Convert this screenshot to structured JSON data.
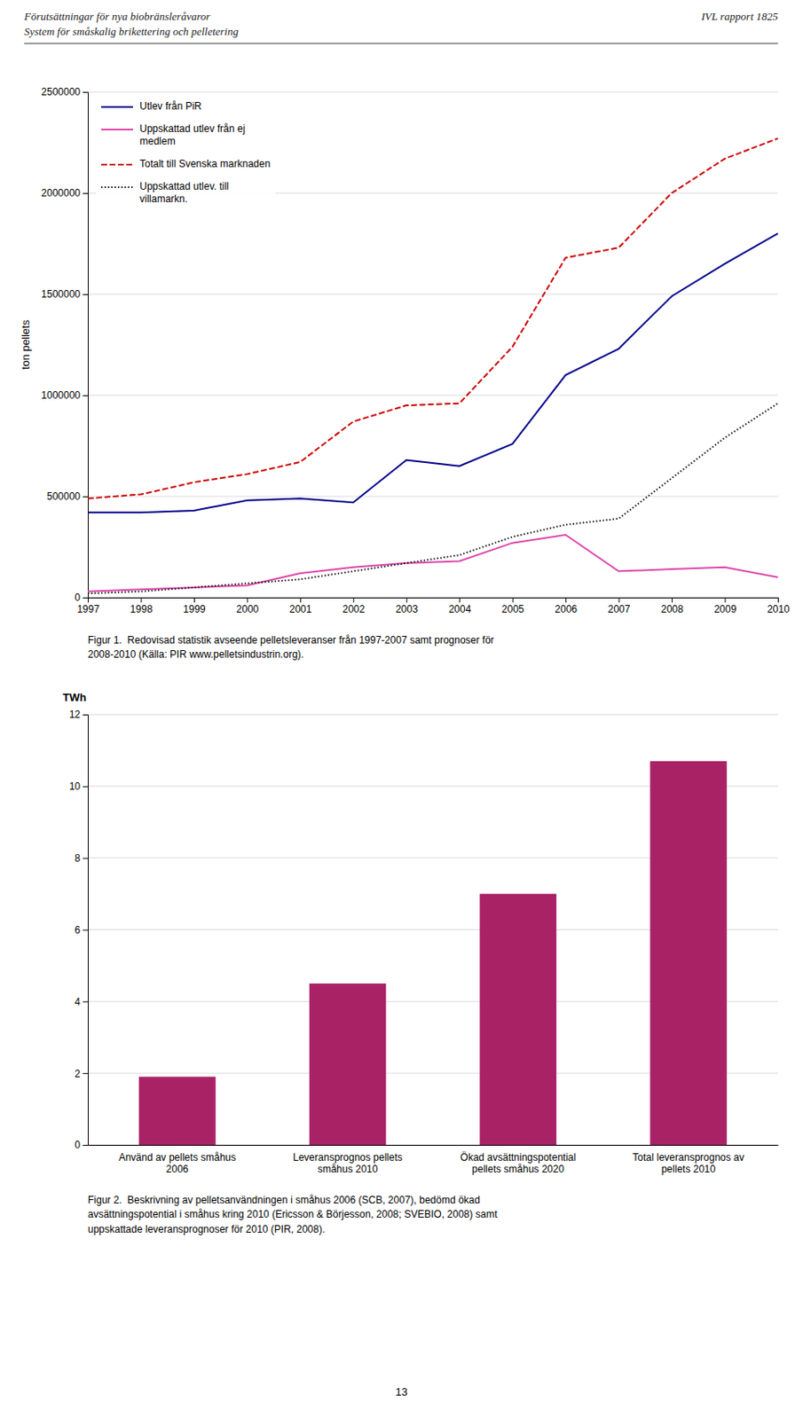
{
  "header_left": [
    "Förutsättningar för nya biobränsleråvaror",
    "System för småskalig brikettering och pelletering"
  ],
  "header_right": "IVL rapport 1825",
  "page_number": "13",
  "chart_data": [
    {
      "type": "line",
      "caption": "Figur 1.  Redovisad statistik avseende pelletsleveranser från 1997-2007 samt prognoser för\n2008-2010 (Källa: PIR www.pelletsindustrin.org).",
      "x": [
        1997,
        1998,
        1999,
        2000,
        2001,
        2002,
        2003,
        2004,
        2005,
        2006,
        2007,
        2008,
        2009,
        2010
      ],
      "xlim": [
        1997,
        2010
      ],
      "xticks": [
        1997,
        1998,
        1999,
        2000,
        2001,
        2002,
        2003,
        2004,
        2005,
        2006,
        2007,
        2008,
        2009,
        2010
      ],
      "ylim": [
        0,
        2500000
      ],
      "yticks": [
        0,
        500000,
        1000000,
        1500000,
        2000000,
        2500000
      ],
      "ylabel": "ton pellets",
      "grid": true,
      "legend": "upper left",
      "series": [
        {
          "name": "Utlev från PiR",
          "color": "#00008B",
          "line_style": "solid",
          "values": [
            420000,
            420000,
            430000,
            480000,
            490000,
            470000,
            680000,
            650000,
            760000,
            1100000,
            1230000,
            1490000,
            1650000,
            1800000
          ]
        },
        {
          "name": "Uppskattad utlev från ej\nmedlem",
          "color": "#DD44AA",
          "line_style": "solid",
          "values": [
            30000,
            40000,
            50000,
            60000,
            120000,
            150000,
            170000,
            180000,
            270000,
            310000,
            130000,
            140000,
            150000,
            100000
          ]
        },
        {
          "name": "Totalt till Svenska marknaden",
          "color": "#CC0000",
          "line_style": "dashed",
          "values": [
            490000,
            510000,
            570000,
            610000,
            670000,
            870000,
            950000,
            960000,
            1240000,
            1680000,
            1730000,
            2000000,
            2170000,
            2270000
          ]
        },
        {
          "name": "Uppskattad utlev. till\nvillamarkn.",
          "color": "#111111",
          "line_style": "dotted",
          "values": [
            20000,
            30000,
            50000,
            70000,
            90000,
            130000,
            170000,
            210000,
            300000,
            360000,
            390000,
            590000,
            790000,
            960000
          ]
        }
      ]
    },
    {
      "type": "bar",
      "caption": "Figur 2.  Beskrivning av pelletsanvändningen i småhus 2006 (SCB, 2007), bedömd ökad\navsättningspotential i småhus kring 2010 (Ericsson & Börjesson, 2008; SVEBIO, 2008) samt\nuppskattade leveransprognoser för 2010 (PIR, 2008).",
      "categories": [
        "Använd av pellets småhus\n2006",
        "Leveransprognos pellets\nsmåhus 2010",
        "Ökad avsättningspotential\npellets småhus 2020",
        "Total leveransprognos av\npellets 2010"
      ],
      "values": [
        1.9,
        4.5,
        7.0,
        10.7
      ],
      "color": "#AA2266",
      "ylim": [
        0,
        12
      ],
      "yticks": [
        0,
        2,
        4,
        6,
        8,
        10,
        12
      ],
      "ylabel": "TWh",
      "grid": true
    }
  ]
}
